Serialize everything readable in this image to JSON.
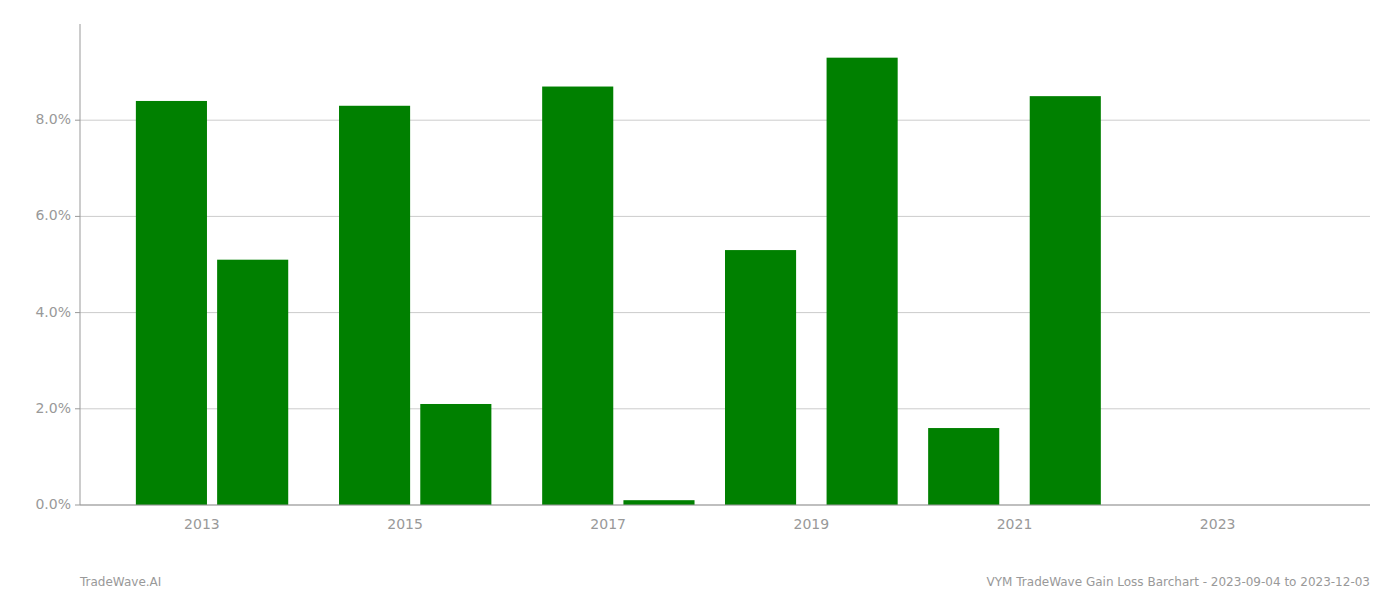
{
  "chart_data": {
    "type": "bar",
    "x": [
      2012.7,
      2013.5,
      2014.7,
      2015.5,
      2016.7,
      2017.5,
      2018.5,
      2019.5,
      2020.5,
      2021.5,
      2022.5,
      2023.3
    ],
    "values": [
      0.084,
      0.051,
      0.083,
      0.021,
      0.087,
      0.001,
      0.053,
      0.093,
      0.016,
      0.085,
      0.0,
      0.0
    ],
    "color": "#008000",
    "xlim": [
      2011.8,
      2024.5
    ],
    "xticks": [
      2013,
      2015,
      2017,
      2019,
      2021,
      2023
    ],
    "ylim": [
      0,
      0.1
    ],
    "yticks": [
      {
        "value": 0.0,
        "label": "0.0%"
      },
      {
        "value": 0.02,
        "label": "2.0%"
      },
      {
        "value": 0.04,
        "label": "4.0%"
      },
      {
        "value": 0.06,
        "label": "6.0%"
      },
      {
        "value": 0.08,
        "label": "8.0%"
      }
    ],
    "grid": true,
    "annotations": [
      "TradeWave.AI",
      "VYM TradeWave Gain Loss Barchart - 2023-09-04 to 2023-12-03"
    ]
  }
}
